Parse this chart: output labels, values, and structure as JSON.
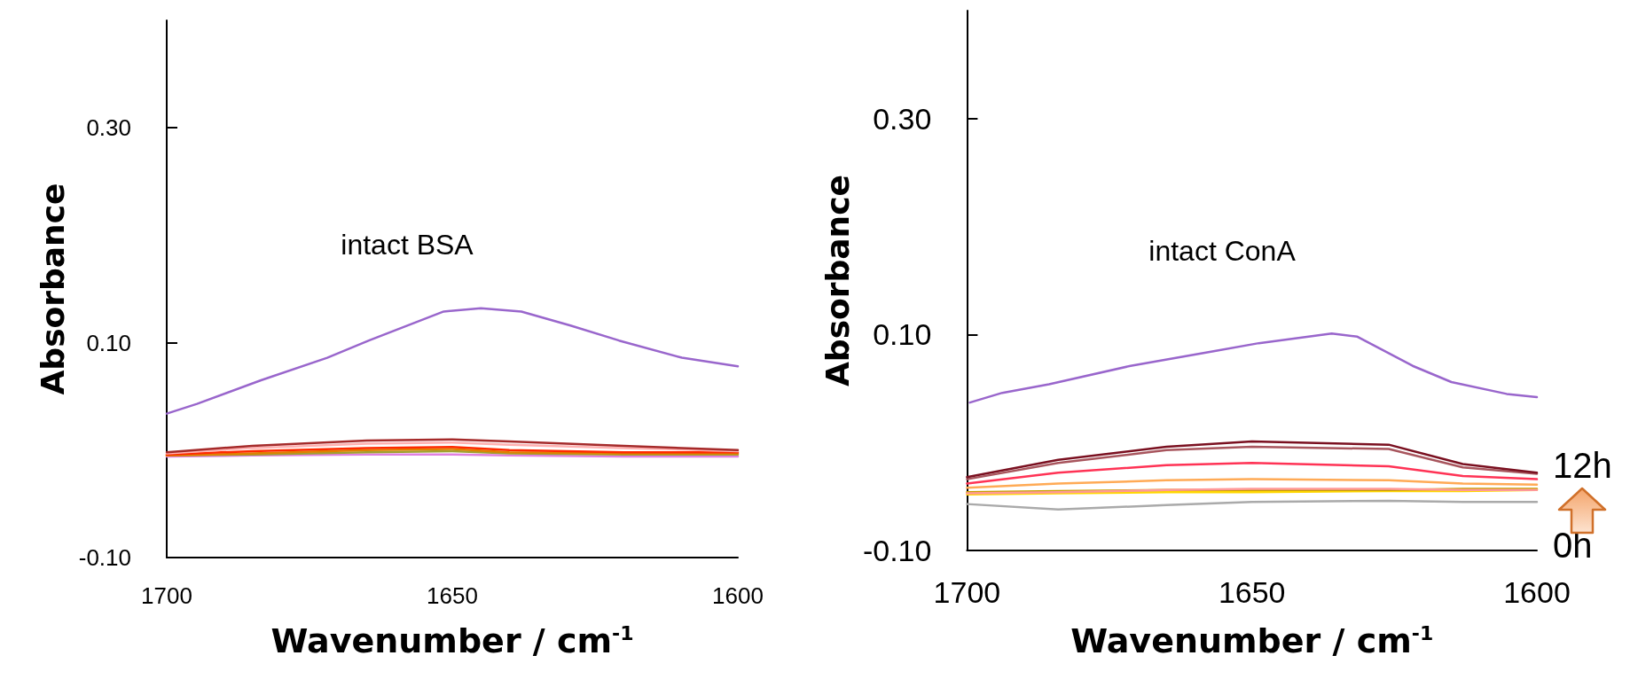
{
  "chart_data": [
    {
      "type": "line",
      "title": "intact BSA",
      "xlabel": "Wavenumber / cm$^{-1}$",
      "ylabel": "Absorbance",
      "xlim": [
        1700,
        1600
      ],
      "xticks": [
        1700,
        1650,
        1600
      ],
      "ylim": [
        -0.1,
        0.4
      ],
      "yticks": [
        {
          "value": -0.1,
          "label": "-0.10"
        },
        {
          "value": 0.1,
          "label": "0.10"
        },
        {
          "value": 0.3,
          "label": "0.30"
        }
      ],
      "grid": false,
      "marker": "none",
      "x": [
        1700,
        1685,
        1665,
        1650,
        1640,
        1620,
        1600
      ],
      "series": [
        {
          "color": "#9966cc",
          "x": [
            1700,
            1694.7,
            1683.5,
            1671.9,
            1664.6,
            1655.4,
            1651.5,
            1645,
            1637.9,
            1629.3,
            1620.8,
            1609.8,
            1600
          ],
          "values": [
            0.034,
            0.043,
            0.065,
            0.086,
            0.102,
            0.121,
            0.129,
            0.132,
            0.129,
            0.116,
            0.102,
            0.086,
            0.078
          ]
        },
        {
          "color": "#a52a2a",
          "values": [
            -0.002,
            0.004,
            0.009,
            0.01,
            0.008,
            0.004,
            0.0
          ]
        },
        {
          "color": "#ffb0b0",
          "values": [
            -0.003,
            0.002,
            0.006,
            0.007,
            0.005,
            0.002,
            -0.001
          ]
        },
        {
          "color": "#ff2a00",
          "values": [
            -0.004,
            -0.001,
            0.002,
            0.003,
            0.0,
            -0.002,
            -0.002
          ]
        },
        {
          "color": "#e08000",
          "values": [
            -0.005,
            -0.003,
            0.0,
            0.001,
            -0.002,
            -0.003,
            -0.003
          ]
        },
        {
          "color": "#a0a030",
          "values": [
            -0.005,
            -0.004,
            -0.002,
            -0.001,
            -0.003,
            -0.004,
            -0.004
          ]
        },
        {
          "color": "#e080e0",
          "values": [
            -0.006,
            -0.005,
            -0.004,
            -0.004,
            -0.005,
            -0.006,
            -0.006
          ]
        }
      ]
    },
    {
      "type": "line",
      "title": "intact ConA",
      "xlabel": "Wavenumber / cm$^{-1}$",
      "ylabel": "Absorbance",
      "xlim": [
        1700,
        1600
      ],
      "xticks": [
        1700,
        1650,
        1600
      ],
      "ylim": [
        -0.1,
        0.4
      ],
      "yticks": [
        {
          "value": -0.1,
          "label": "-0.10"
        },
        {
          "value": 0.1,
          "label": "0.10"
        },
        {
          "value": 0.3,
          "label": "0.30"
        }
      ],
      "grid": false,
      "marker": "none",
      "annotations": [
        "12h",
        "0h"
      ],
      "x": [
        1700,
        1684,
        1665,
        1650,
        1626,
        1613,
        1600
      ],
      "series": [
        {
          "color": "#9966cc",
          "x": [
            1699.5,
            1693.8,
            1685.6,
            1671.3,
            1656.3,
            1648.8,
            1636,
            1631.5,
            1621.8,
            1615,
            1605.3,
            1600
          ],
          "values": [
            0.037,
            0.046,
            0.054,
            0.071,
            0.085,
            0.092,
            0.101,
            0.098,
            0.071,
            0.056,
            0.045,
            0.042
          ]
        },
        {
          "color": "#7a1020",
          "values": [
            -0.032,
            -0.016,
            -0.004,
            0.001,
            -0.002,
            -0.02,
            -0.028
          ]
        },
        {
          "color": "#a8555d",
          "values": [
            -0.034,
            -0.019,
            -0.007,
            -0.004,
            -0.006,
            -0.023,
            -0.029
          ]
        },
        {
          "color": "#ff3355",
          "values": [
            -0.038,
            -0.028,
            -0.021,
            -0.019,
            -0.022,
            -0.031,
            -0.034
          ]
        },
        {
          "color": "#ffaa55",
          "values": [
            -0.042,
            -0.038,
            -0.035,
            -0.034,
            -0.035,
            -0.038,
            -0.039
          ]
        },
        {
          "color": "#ff9999",
          "values": [
            -0.047,
            -0.046,
            -0.044,
            -0.043,
            -0.043,
            -0.044,
            -0.044
          ]
        },
        {
          "color": "#c8a000",
          "values": [
            -0.046,
            -0.045,
            -0.044,
            -0.044,
            -0.044,
            -0.043,
            -0.043
          ]
        },
        {
          "color": "#ffd700",
          "values": [
            -0.048,
            -0.047,
            -0.046,
            -0.046,
            -0.045,
            -0.045,
            -0.044
          ]
        },
        {
          "color": "#aaaaaa",
          "values": [
            -0.057,
            -0.062,
            -0.058,
            -0.055,
            -0.054,
            -0.055,
            -0.055
          ]
        }
      ]
    }
  ]
}
